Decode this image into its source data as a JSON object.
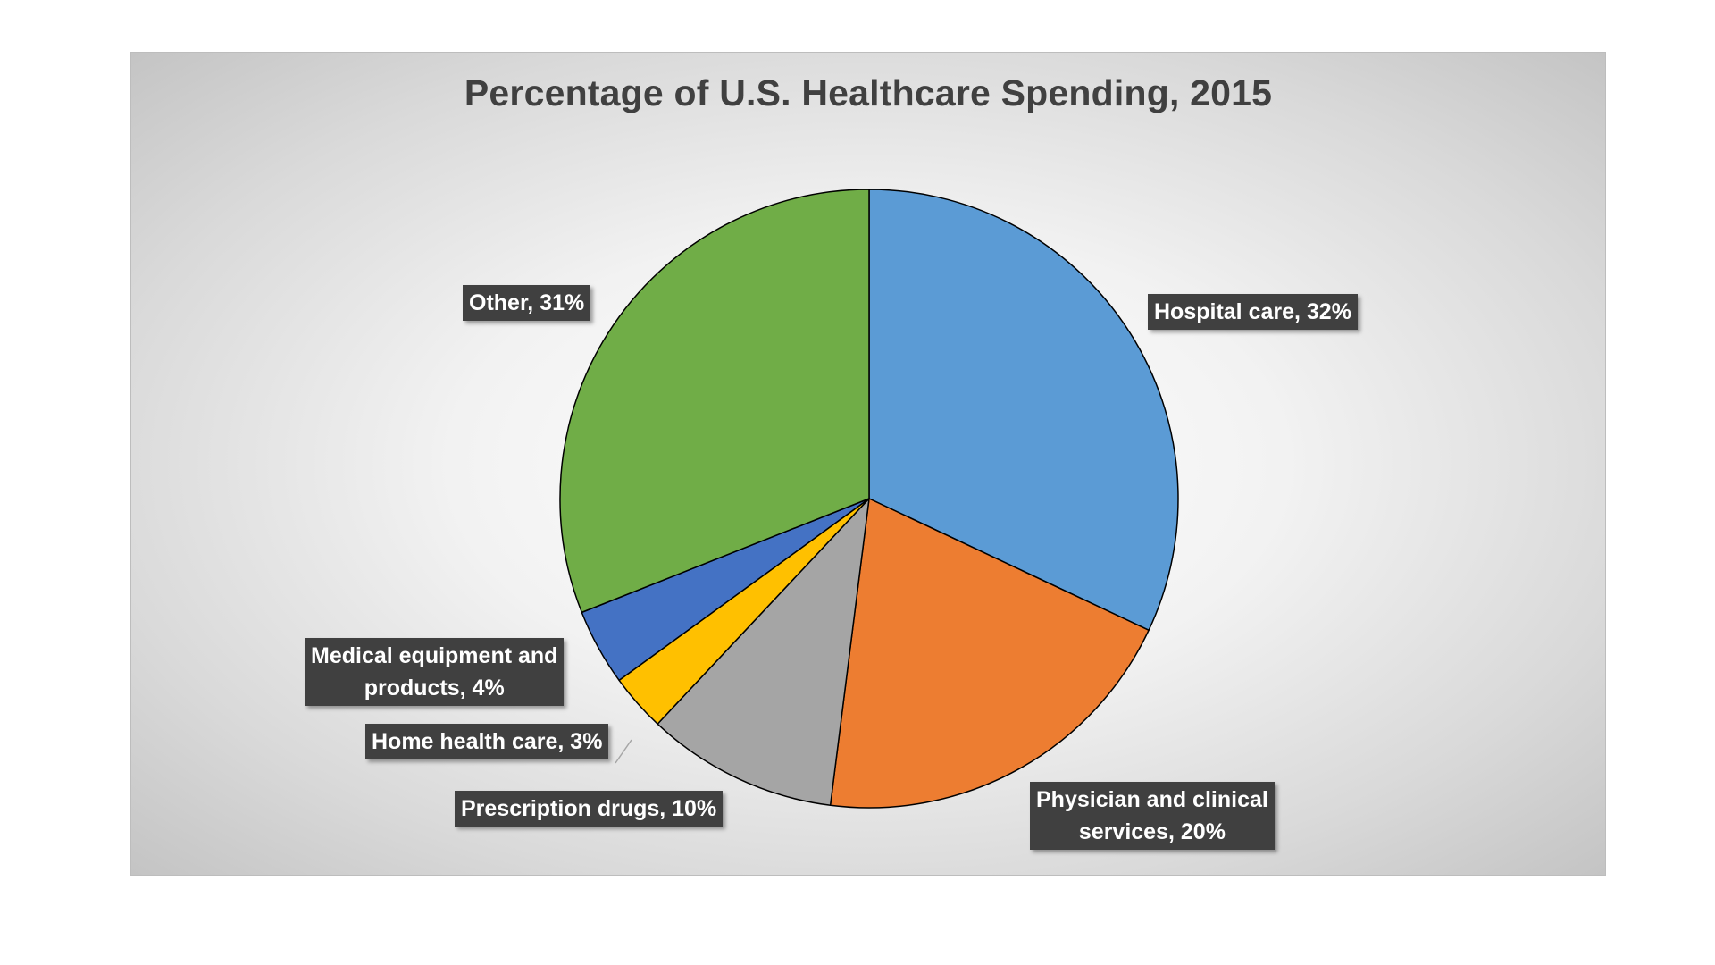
{
  "chart_data": {
    "type": "pie",
    "title": "Percentage of U.S. Healthcare Spending, 2015",
    "start_angle_deg": 0,
    "direction": "clockwise",
    "slices": [
      {
        "label": "Hospital care",
        "value": 32,
        "color": "#5B9BD5",
        "data_label": "Hospital care, 32%"
      },
      {
        "label": "Physician and clinical services",
        "value": 20,
        "color": "#ED7D31",
        "data_label": "Physician and clinical services, 20%"
      },
      {
        "label": "Prescription drugs",
        "value": 10,
        "color": "#A5A5A5",
        "data_label": "Prescription drugs, 10%"
      },
      {
        "label": "Home health care",
        "value": 3,
        "color": "#FFC000",
        "data_label": "Home health care, 3%"
      },
      {
        "label": "Medical equipment and products",
        "value": 4,
        "color": "#4472C4",
        "data_label": "Medical equipment and products, 4%"
      },
      {
        "label": "Other",
        "value": 31,
        "color": "#70AD47",
        "data_label": "Other, 31%"
      }
    ],
    "legend": "none",
    "data_labels": {
      "hospital": {
        "line1": "Hospital care, 32%"
      },
      "physician": {
        "line1": "Physician and clinical",
        "line2": "services, 20%"
      },
      "prescription": {
        "line1": "Prescription drugs, 10%"
      },
      "home_health": {
        "line1": "Home health care, 3%"
      },
      "medical_equipment": {
        "line1": "Medical equipment and",
        "line2": "products, 4%"
      },
      "other": {
        "line1": "Other, 31%"
      }
    }
  }
}
